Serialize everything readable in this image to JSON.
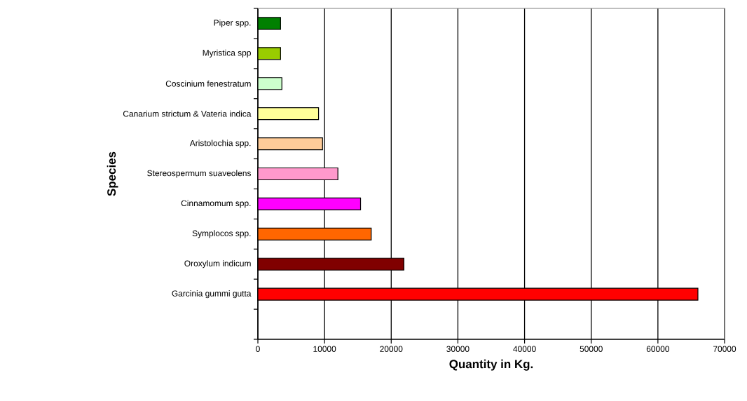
{
  "chart_data": {
    "type": "bar",
    "orientation": "horizontal",
    "xlabel": "Quantity in Kg.",
    "ylabel": "Species",
    "categories": [
      "Piper spp.",
      "Myristica spp",
      "Coscinium fenestratum",
      "Canarium strictum & Vateria indica",
      "Aristolochia spp.",
      "Stereospermum suaveolens",
      "Cinnamomum spp.",
      "Symplocos spp.",
      "Oroxylum indicum",
      "Garcinia gummi gutta",
      null
    ],
    "values": [
      3400,
      3400,
      3600,
      9100,
      9700,
      12000,
      15400,
      17000,
      21900,
      66000,
      null
    ],
    "colors": [
      "#008000",
      "#99cc00",
      "#ccffcc",
      "#ffff99",
      "#ffcc99",
      "#ff99cc",
      "#ff00ff",
      "#ff6600",
      "#800000",
      "#ff0000",
      "#ffffff"
    ],
    "xlim": [
      0,
      70000
    ],
    "xticks": [
      0,
      10000,
      20000,
      30000,
      40000,
      50000,
      60000,
      70000
    ],
    "grid": "x"
  }
}
